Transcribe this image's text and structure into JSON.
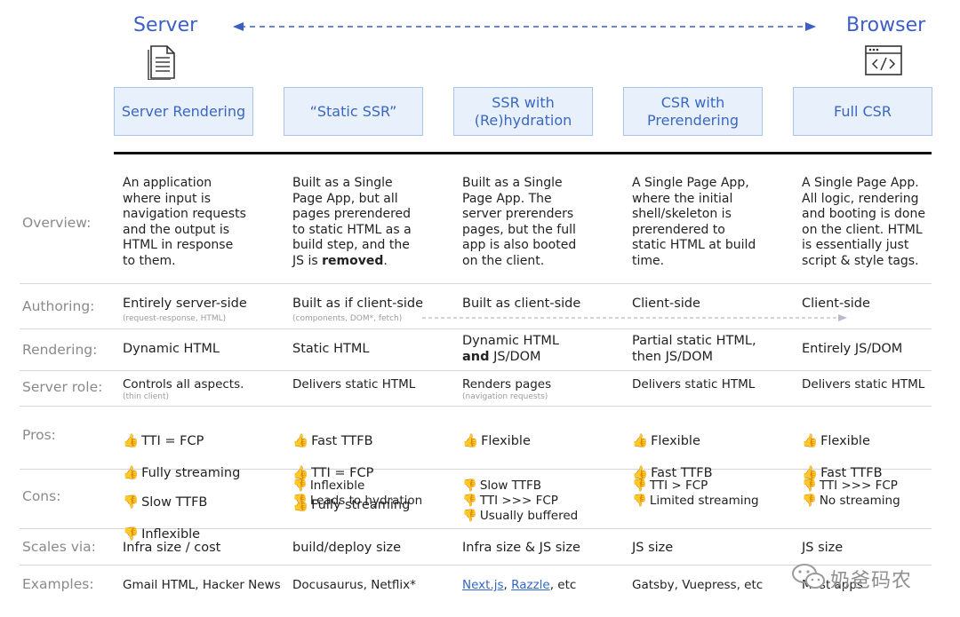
{
  "endpoints": {
    "server": "Server",
    "browser": "Browser"
  },
  "icons": {
    "server": "document-icon",
    "browser": "code-window-icon"
  },
  "colors": {
    "accent": "#3b5fc4",
    "box_fill": "#e8f0fb",
    "box_border": "#a9c4ea",
    "label": "#8a8a8a"
  },
  "approaches": [
    "Server Rendering",
    "“Static SSR”",
    "SSR with\n(Re)hydration",
    "CSR with\nPrerendering",
    "Full CSR"
  ],
  "rows": {
    "overview": {
      "label": "Overview:",
      "cells": [
        {
          "text": "An application\nwhere input is\nnavigation requests\nand the output is\nHTML in response\nto them."
        },
        {
          "text": "Built as a Single\nPage App, but all\npages prerendered\nto static HTML as a\nbuild step, and the\nJS is ",
          "bold": "removed",
          "after": "."
        },
        {
          "text": "Built as a Single\nPage App. The\nserver prerenders\npages, but the full\napp is also booted\non the client."
        },
        {
          "text": "A Single Page App,\nwhere the initial\nshell/skeleton is\nprerendered to\nstatic HTML at build\ntime."
        },
        {
          "text": "A Single Page App.\nAll logic, rendering\nand booting is done\non the client. HTML\nis essentially just\nscript & style tags."
        }
      ]
    },
    "authoring": {
      "label": "Authoring:",
      "cells": [
        {
          "text": "Entirely server-side",
          "sub": "(request-response, HTML)"
        },
        {
          "text": "Built as if client-side",
          "sub": "(components, DOM*, fetch)"
        },
        {
          "text": "Built as client-side"
        },
        {
          "text": "Client-side"
        },
        {
          "text": "Client-side"
        }
      ]
    },
    "rendering": {
      "label": "Rendering:",
      "cells": [
        {
          "text": "Dynamic HTML"
        },
        {
          "text": "Static HTML"
        },
        {
          "text": "Dynamic HTML",
          "bold": "and",
          "after": " JS/DOM"
        },
        {
          "text": "Partial static HTML,\nthen JS/DOM"
        },
        {
          "text": "Entirely JS/DOM"
        }
      ]
    },
    "server_role": {
      "label": "Server role:",
      "cells": [
        {
          "text": "Controls all aspects.",
          "sub": "(thin client)"
        },
        {
          "text": "Delivers static HTML"
        },
        {
          "text": "Renders pages",
          "sub": "(navigation requests)"
        },
        {
          "text": "Delivers static HTML"
        },
        {
          "text": "Delivers static HTML"
        }
      ]
    },
    "pros": {
      "label": "Pros:",
      "emoji": "👍",
      "cells": [
        [
          "TTI = FCP",
          "Fully streaming"
        ],
        [
          "Fast TTFB",
          "TTI = FCP",
          "Fully streaming"
        ],
        [
          "Flexible"
        ],
        [
          "Flexible",
          "Fast TTFB"
        ],
        [
          "Flexible",
          "Fast TTFB"
        ]
      ]
    },
    "cons": {
      "label": "Cons:",
      "emoji": "👎",
      "cells": [
        [
          "Slow TTFB",
          "Inflexible"
        ],
        [
          "Inflexible",
          "Leads to hydration"
        ],
        [
          "Slow TTFB",
          "TTI >>> FCP",
          "Usually buffered"
        ],
        [
          "TTI > FCP",
          "Limited streaming"
        ],
        [
          "TTI >>> FCP",
          "No streaming"
        ]
      ]
    },
    "scales": {
      "label": "Scales via:",
      "cells": [
        "Infra size / cost",
        "build/deploy size",
        "Infra size & JS size",
        "JS size",
        "JS size"
      ]
    },
    "examples": {
      "label": "Examples:",
      "cells": [
        {
          "text": "Gmail HTML, Hacker News"
        },
        {
          "text": "Docusaurus, Netflix*"
        },
        {
          "links": [
            "Next.js",
            "Razzle"
          ],
          "after": ", etc"
        },
        {
          "text": "Gatsby, Vuepress, etc"
        },
        {
          "text": "Most apps"
        }
      ]
    }
  },
  "watermark": "奶爸码农"
}
